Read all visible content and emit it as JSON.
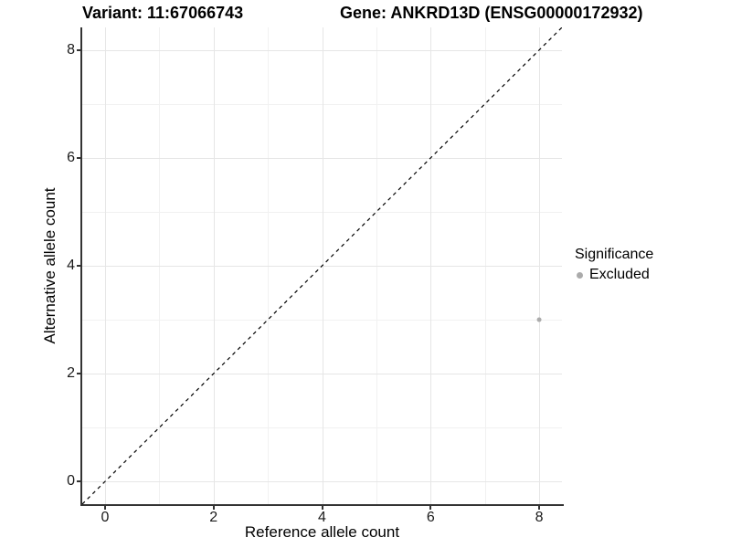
{
  "header": {
    "variant_title": "Variant: 11:67066743",
    "gene_title": "Gene: ANKRD13D (ENSG00000172932)"
  },
  "chart_data": {
    "type": "scatter",
    "xlabel": "Reference allele count",
    "ylabel": "Alternative allele count",
    "xlim": [
      -0.42,
      8.42
    ],
    "ylim": [
      -0.42,
      8.42
    ],
    "x_major_ticks": [
      0,
      2,
      4,
      6,
      8
    ],
    "y_major_ticks": [
      0,
      2,
      4,
      6,
      8
    ],
    "x_minor_ticks": [
      1,
      3,
      5,
      7
    ],
    "y_minor_ticks": [
      1,
      3,
      5,
      7
    ],
    "grid": "major and minor gridlines on white panel",
    "identity_line": {
      "x1": -0.42,
      "y1": -0.42,
      "x2": 8.42,
      "y2": 8.42,
      "style": "dashed",
      "color": "#000000"
    },
    "series": [
      {
        "name": "Excluded",
        "color": "#ababab",
        "point_radius": 2.5,
        "points": [
          {
            "x": 8,
            "y": 3
          }
        ]
      }
    ],
    "legend": {
      "title": "Significance",
      "position": "right",
      "entries": [
        {
          "label": "Excluded",
          "color": "#ababab"
        }
      ]
    }
  },
  "colors": {
    "background": "#ffffff",
    "grid_major": "#e6e6e6",
    "grid_minor": "#f1f1f1",
    "axis_line": "#333333",
    "tick_text": "#1a1a1a",
    "title_text": "#000000",
    "point": "#ababab"
  }
}
